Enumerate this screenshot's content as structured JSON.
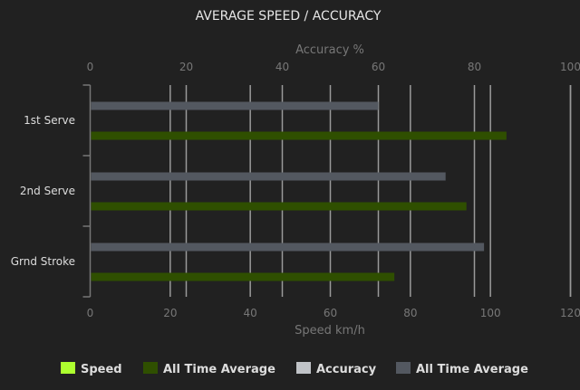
{
  "chart_data": {
    "type": "bar",
    "orientation": "horizontal",
    "title": "AVERAGE SPEED / ACCURACY",
    "categories": [
      "1st Serve",
      "2nd Serve",
      "Grnd Stroke"
    ],
    "top_axis": {
      "label": "Accuracy %",
      "range": [
        0,
        100
      ],
      "ticks": [
        "0",
        "20",
        "40",
        "60",
        "80",
        "100"
      ]
    },
    "bottom_axis": {
      "label": "Speed km/h",
      "range": [
        0,
        120
      ],
      "ticks": [
        "0",
        "20",
        "40",
        "60",
        "80",
        "100",
        "120"
      ]
    },
    "grid": true,
    "legend_placement": "bottom",
    "legend": [
      {
        "name": "Speed",
        "color": "#adff2f"
      },
      {
        "name": "All Time Average",
        "color": "#2f4f00"
      },
      {
        "name": "Accuracy",
        "color": "#c0c3c7"
      },
      {
        "name": "All Time Average",
        "color": "#535860"
      }
    ],
    "series": [
      {
        "name": "All Time Average",
        "axis": "accuracy",
        "color": "#535860",
        "values": [
          60,
          74,
          82
        ]
      },
      {
        "name": "All Time Average",
        "axis": "speed",
        "color": "#2f4f00",
        "values": [
          104,
          94,
          76
        ]
      }
    ]
  }
}
